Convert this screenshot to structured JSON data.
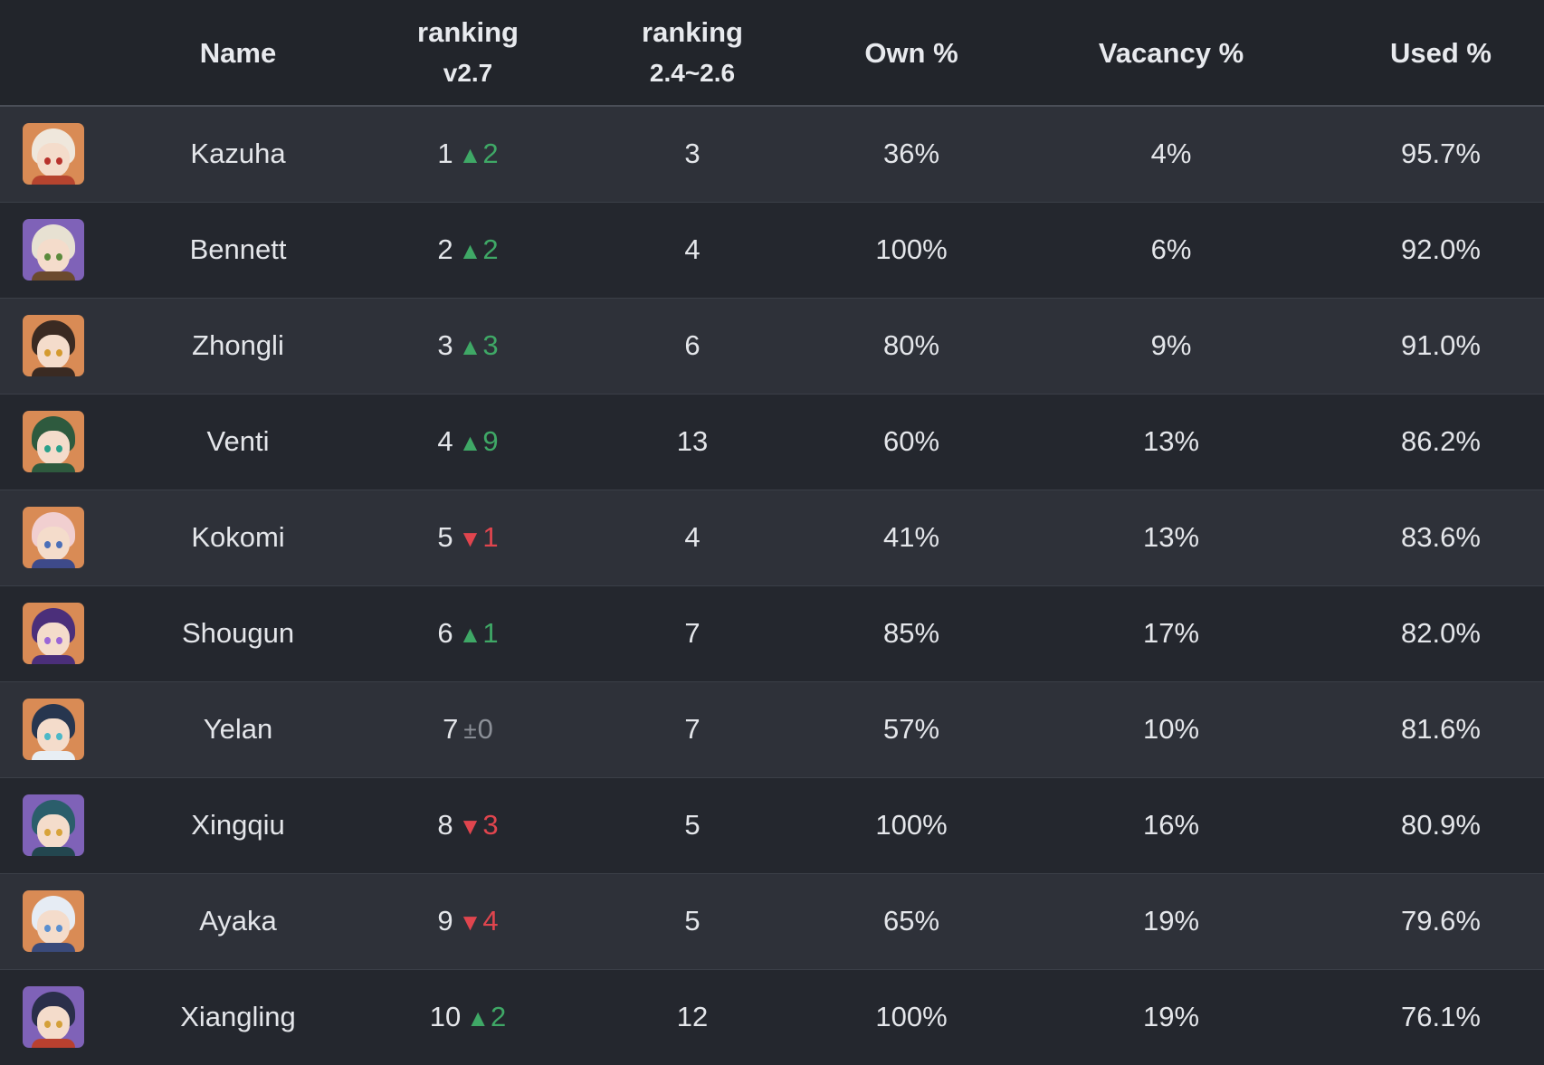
{
  "header": {
    "name": "Name",
    "ranking_line1": "ranking",
    "ranking_line2": "v2.7",
    "prev_line1": "ranking",
    "prev_line2": "2.4~2.6",
    "own": "Own %",
    "vacancy": "Vacancy %",
    "used": "Used %"
  },
  "colors": {
    "up": "#3fa866",
    "down": "#e0454e",
    "same": "#8b8f97"
  },
  "rows": [
    {
      "name": "Kazuha",
      "rank": "1",
      "dir": "up",
      "arrow": "▲",
      "delta": "2",
      "prev": "3",
      "own": "36%",
      "vacancy": "4%",
      "used": "95.7%",
      "avatar": {
        "icon": "kazuha-avatar-icon",
        "bg": "#d98b55",
        "hair": "#efe7dc",
        "eye": "#b8322c",
        "collar": "#b6442f"
      }
    },
    {
      "name": "Bennett",
      "rank": "2",
      "dir": "up",
      "arrow": "▲",
      "delta": "2",
      "prev": "4",
      "own": "100%",
      "vacancy": "6%",
      "used": "92.0%",
      "avatar": {
        "icon": "bennett-avatar-icon",
        "bg": "#7f62b8",
        "hair": "#e7e1d2",
        "eye": "#5b8a3c",
        "collar": "#6b4a2e"
      }
    },
    {
      "name": "Zhongli",
      "rank": "3",
      "dir": "up",
      "arrow": "▲",
      "delta": "3",
      "prev": "6",
      "own": "80%",
      "vacancy": "9%",
      "used": "91.0%",
      "avatar": {
        "icon": "zhongli-avatar-icon",
        "bg": "#d98b55",
        "hair": "#3a2a22",
        "eye": "#d49a2e",
        "collar": "#3a2a22"
      }
    },
    {
      "name": "Venti",
      "rank": "4",
      "dir": "up",
      "arrow": "▲",
      "delta": "9",
      "prev": "13",
      "own": "60%",
      "vacancy": "13%",
      "used": "86.2%",
      "avatar": {
        "icon": "venti-avatar-icon",
        "bg": "#d98b55",
        "hair": "#2e5a3e",
        "eye": "#2aa08a",
        "collar": "#2e5a3e"
      }
    },
    {
      "name": "Kokomi",
      "rank": "5",
      "dir": "down",
      "arrow": "▼",
      "delta": "1",
      "prev": "4",
      "own": "41%",
      "vacancy": "13%",
      "used": "83.6%",
      "avatar": {
        "icon": "kokomi-avatar-icon",
        "bg": "#d98b55",
        "hair": "#f1cfd0",
        "eye": "#4b6fb8",
        "collar": "#3e4a8a"
      }
    },
    {
      "name": "Shougun",
      "rank": "6",
      "dir": "up",
      "arrow": "▲",
      "delta": "1",
      "prev": "7",
      "own": "85%",
      "vacancy": "17%",
      "used": "82.0%",
      "avatar": {
        "icon": "shougun-avatar-icon",
        "bg": "#d98b55",
        "hair": "#4b2f7a",
        "eye": "#9a66d6",
        "collar": "#4b2f7a"
      }
    },
    {
      "name": "Yelan",
      "rank": "7",
      "dir": "same",
      "arrow": "±",
      "delta": "0",
      "prev": "7",
      "own": "57%",
      "vacancy": "10%",
      "used": "81.6%",
      "avatar": {
        "icon": "yelan-avatar-icon",
        "bg": "#d98b55",
        "hair": "#27364f",
        "eye": "#4cb8c7",
        "collar": "#e8eef4"
      }
    },
    {
      "name": "Xingqiu",
      "rank": "8",
      "dir": "down",
      "arrow": "▼",
      "delta": "3",
      "prev": "5",
      "own": "100%",
      "vacancy": "16%",
      "used": "80.9%",
      "avatar": {
        "icon": "xingqiu-avatar-icon",
        "bg": "#7f62b8",
        "hair": "#2b5e6b",
        "eye": "#d8a33a",
        "collar": "#23464f"
      }
    },
    {
      "name": "Ayaka",
      "rank": "9",
      "dir": "down",
      "arrow": "▼",
      "delta": "4",
      "prev": "5",
      "own": "65%",
      "vacancy": "19%",
      "used": "79.6%",
      "avatar": {
        "icon": "ayaka-avatar-icon",
        "bg": "#d98b55",
        "hair": "#e6ecf4",
        "eye": "#5a8fd0",
        "collar": "#3a4a7a"
      }
    },
    {
      "name": "Xiangling",
      "rank": "10",
      "dir": "up",
      "arrow": "▲",
      "delta": "2",
      "prev": "12",
      "own": "100%",
      "vacancy": "19%",
      "used": "76.1%",
      "avatar": {
        "icon": "xiangling-avatar-icon",
        "bg": "#7f62b8",
        "hair": "#2a2f4a",
        "eye": "#d4a03a",
        "collar": "#b8402f"
      }
    }
  ]
}
